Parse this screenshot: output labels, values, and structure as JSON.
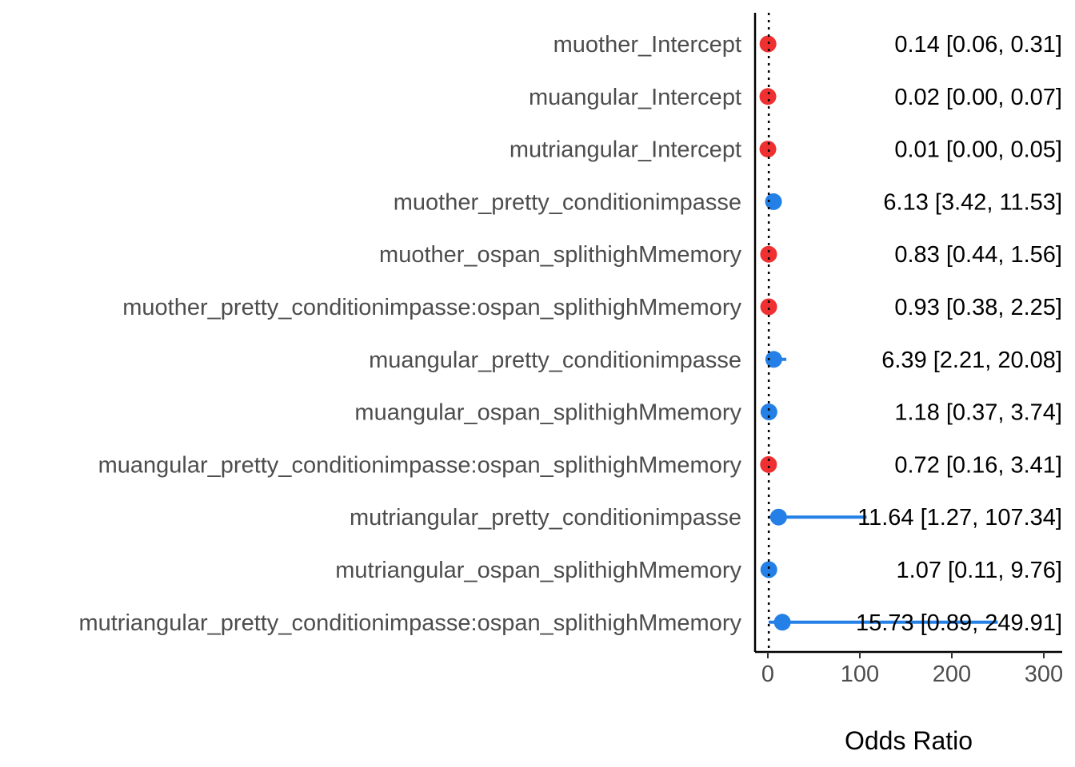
{
  "chart_data": {
    "type": "scatter",
    "subtype": "forest-plot",
    "title": "",
    "xlabel": "Odds Ratio",
    "ylabel": "",
    "xlim": [
      0,
      300
    ],
    "x_ticks": [
      0,
      100,
      200,
      300
    ],
    "reference_line": {
      "x": 1,
      "style": "dotted"
    },
    "grid": false,
    "legend": "none",
    "colors": {
      "positive": "#2480e6",
      "negative": "#f03030"
    },
    "rows": [
      {
        "term": "muother_Intercept",
        "estimate": 0.14,
        "lower": 0.06,
        "upper": 0.31,
        "label": "0.14 [0.06, 0.31]",
        "direction": "negative"
      },
      {
        "term": "muangular_Intercept",
        "estimate": 0.02,
        "lower": 0.0,
        "upper": 0.07,
        "label": "0.02 [0.00, 0.07]",
        "direction": "negative"
      },
      {
        "term": "mutriangular_Intercept",
        "estimate": 0.01,
        "lower": 0.0,
        "upper": 0.05,
        "label": "0.01 [0.00, 0.05]",
        "direction": "negative"
      },
      {
        "term": "muother_pretty_conditionimpasse",
        "estimate": 6.13,
        "lower": 3.42,
        "upper": 11.53,
        "label": "6.13 [3.42, 11.53]",
        "direction": "positive"
      },
      {
        "term": "muother_ospan_splithighMmemory",
        "estimate": 0.83,
        "lower": 0.44,
        "upper": 1.56,
        "label": "0.83 [0.44, 1.56]",
        "direction": "negative"
      },
      {
        "term": "muother_pretty_conditionimpasse:ospan_splithighMmemory",
        "estimate": 0.93,
        "lower": 0.38,
        "upper": 2.25,
        "label": "0.93 [0.38, 2.25]",
        "direction": "negative"
      },
      {
        "term": "muangular_pretty_conditionimpasse",
        "estimate": 6.39,
        "lower": 2.21,
        "upper": 20.08,
        "label": "6.39 [2.21, 20.08]",
        "direction": "positive"
      },
      {
        "term": "muangular_ospan_splithighMmemory",
        "estimate": 1.18,
        "lower": 0.37,
        "upper": 3.74,
        "label": "1.18 [0.37, 3.74]",
        "direction": "positive"
      },
      {
        "term": "muangular_pretty_conditionimpasse:ospan_splithighMmemory",
        "estimate": 0.72,
        "lower": 0.16,
        "upper": 3.41,
        "label": "0.72 [0.16, 3.41]",
        "direction": "negative"
      },
      {
        "term": "mutriangular_pretty_conditionimpasse",
        "estimate": 11.64,
        "lower": 1.27,
        "upper": 107.34,
        "label": "11.64 [1.27, 107.34]",
        "direction": "positive"
      },
      {
        "term": "mutriangular_ospan_splithighMmemory",
        "estimate": 1.07,
        "lower": 0.11,
        "upper": 9.76,
        "label": "1.07 [0.11, 9.76]",
        "direction": "positive"
      },
      {
        "term": "mutriangular_pretty_conditionimpasse:ospan_splithighMmemory",
        "estimate": 15.73,
        "lower": 0.89,
        "upper": 249.91,
        "label": "15.73 [0.89, 249.91]",
        "direction": "positive"
      }
    ]
  }
}
